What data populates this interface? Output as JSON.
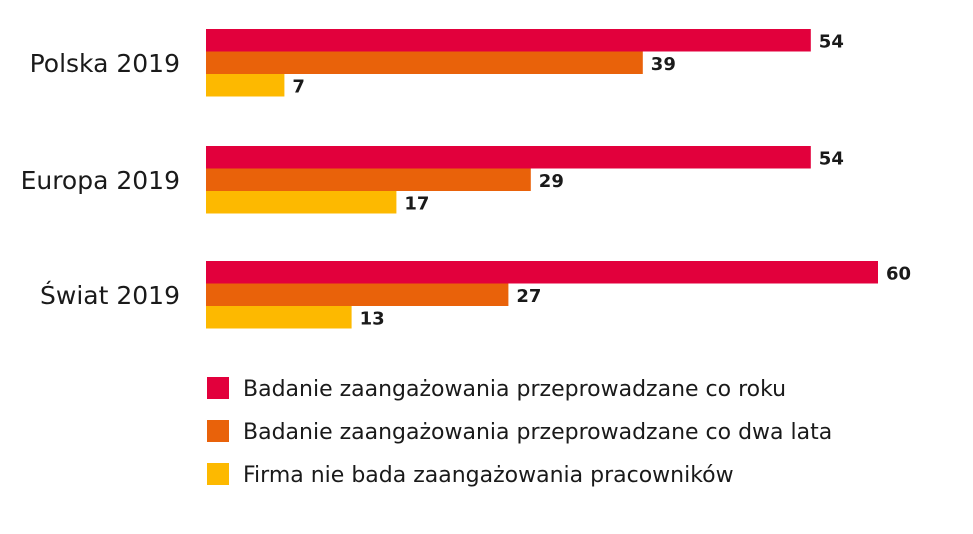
{
  "chart_data": {
    "type": "bar",
    "orientation": "horizontal",
    "categories": [
      "Polska 2019",
      "Europa 2019",
      "Świat 2019"
    ],
    "series": [
      {
        "name": "Badanie zaangażowania przeprowadzane co roku",
        "color": "#E2003C",
        "values": [
          54,
          54,
          60
        ]
      },
      {
        "name": "Badanie zaangażowania przeprowadzane co dwa lata",
        "color": "#E9620A",
        "values": [
          39,
          29,
          27
        ]
      },
      {
        "name": "Firma nie bada zaangażowania pracowników",
        "color": "#FDB900",
        "values": [
          7,
          17,
          13
        ]
      }
    ],
    "xlim": [
      0,
      62
    ],
    "grid": false,
    "legend_position": "bottom",
    "data_labels": true
  }
}
